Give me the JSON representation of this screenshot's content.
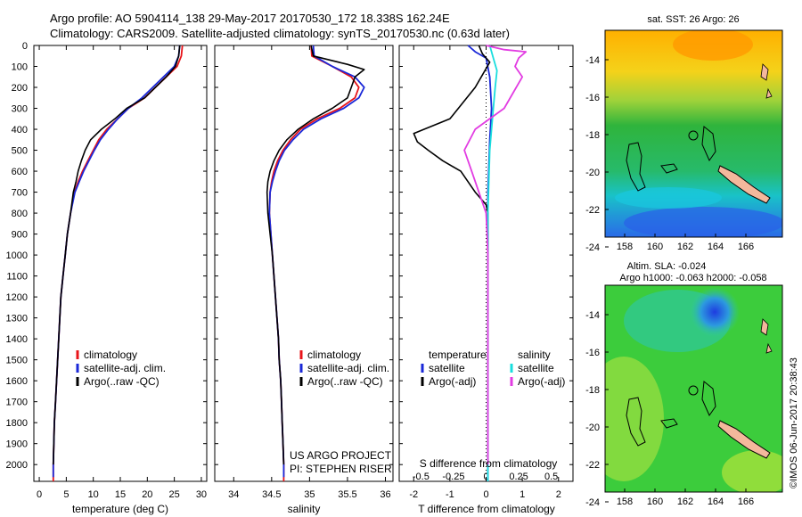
{
  "header": {
    "line1": "Argo profile: AO 5904114_138 29-May-2017 20170530_172 18.338S 162.24E",
    "line2": "Climatology: CARS2009. Satellite-adjusted climatology: synTS_20170530.nc (0.63d later)"
  },
  "colors": {
    "climatology": "#e8141a",
    "satellite": "#1a28d8",
    "argo": "#000000",
    "satellite_salinity": "#19dede",
    "argo_salinity": "#e23ce2"
  },
  "chart_data": [
    {
      "type": "line",
      "panel": "temperature",
      "xlabel": "temperature (deg C)",
      "ylabel": "",
      "xlim": [
        -1,
        31
      ],
      "ylim": [
        2080,
        0
      ],
      "xticks": [
        "0",
        "5",
        "10",
        "15",
        "20",
        "25",
        "30"
      ],
      "yticks": [
        "0",
        "100",
        "200",
        "300",
        "400",
        "500",
        "600",
        "700",
        "800",
        "900",
        "1000",
        "1100",
        "1200",
        "1300",
        "1400",
        "1500",
        "1600",
        "1700",
        "1800",
        "1900",
        "2000"
      ],
      "legend": [
        "climatology",
        "satellite-adj. clim.",
        "Argo(..raw -QC)"
      ],
      "series": [
        {
          "name": "climatology",
          "color": "#e8141a",
          "points": [
            [
              26.5,
              0
            ],
            [
              26.3,
              50
            ],
            [
              25.5,
              100
            ],
            [
              23.5,
              150
            ],
            [
              21.5,
              200
            ],
            [
              19.5,
              250
            ],
            [
              16.5,
              300
            ],
            [
              14.5,
              350
            ],
            [
              12.5,
              400
            ],
            [
              11,
              450
            ],
            [
              10,
              500
            ],
            [
              9,
              550
            ],
            [
              8,
              600
            ],
            [
              7.2,
              650
            ],
            [
              6.5,
              700
            ],
            [
              5.8,
              800
            ],
            [
              5.2,
              900
            ],
            [
              4.8,
              1000
            ],
            [
              4.4,
              1100
            ],
            [
              4,
              1200
            ],
            [
              3.8,
              1300
            ],
            [
              3.6,
              1400
            ],
            [
              3.4,
              1500
            ],
            [
              3.2,
              1600
            ],
            [
              3,
              1700
            ],
            [
              2.8,
              1800
            ],
            [
              2.7,
              1900
            ],
            [
              2.6,
              2000
            ],
            [
              2.6,
              2080
            ]
          ]
        },
        {
          "name": "satellite-adj. clim.",
          "color": "#1a28d8",
          "points": [
            [
              26,
              0
            ],
            [
              25.8,
              50
            ],
            [
              25,
              100
            ],
            [
              23,
              150
            ],
            [
              21,
              200
            ],
            [
              19,
              250
            ],
            [
              16.5,
              300
            ],
            [
              14.5,
              350
            ],
            [
              12.8,
              400
            ],
            [
              11.3,
              450
            ],
            [
              10.2,
              500
            ],
            [
              9.2,
              550
            ],
            [
              8.2,
              600
            ],
            [
              7.4,
              650
            ],
            [
              6.6,
              700
            ],
            [
              5.8,
              800
            ],
            [
              5.2,
              900
            ],
            [
              4.8,
              1000
            ],
            [
              4.4,
              1100
            ],
            [
              4,
              1200
            ],
            [
              3.8,
              1300
            ],
            [
              3.6,
              1400
            ],
            [
              3.4,
              1500
            ],
            [
              3.2,
              1600
            ],
            [
              3,
              1700
            ],
            [
              2.8,
              1800
            ],
            [
              2.7,
              1900
            ],
            [
              2.6,
              2000
            ],
            [
              2.6,
              2060
            ]
          ]
        },
        {
          "name": "Argo(..raw -QC)",
          "color": "#000000",
          "points": [
            [
              26,
              0
            ],
            [
              25.8,
              50
            ],
            [
              25.2,
              100
            ],
            [
              23.5,
              150
            ],
            [
              21.5,
              200
            ],
            [
              19.5,
              250
            ],
            [
              16.2,
              300
            ],
            [
              14,
              350
            ],
            [
              11.5,
              400
            ],
            [
              9.5,
              450
            ],
            [
              8.5,
              500
            ],
            [
              7.8,
              550
            ],
            [
              7.2,
              600
            ],
            [
              6.8,
              650
            ],
            [
              6.3,
              700
            ],
            [
              5.8,
              800
            ],
            [
              5.2,
              900
            ],
            [
              4.8,
              1000
            ],
            [
              4.4,
              1100
            ],
            [
              4,
              1200
            ],
            [
              3.8,
              1300
            ],
            [
              3.6,
              1400
            ],
            [
              3.4,
              1500
            ],
            [
              3.2,
              1600
            ],
            [
              3,
              1700
            ],
            [
              2.8,
              1800
            ],
            [
              2.7,
              1900
            ],
            [
              2.6,
              2000
            ]
          ]
        }
      ]
    },
    {
      "type": "line",
      "panel": "salinity",
      "xlabel": "salinity",
      "xlim": [
        33.75,
        36.1
      ],
      "ylim": [
        2080,
        0
      ],
      "xticks": [
        "34",
        "34.5",
        "35",
        "35.5",
        "36"
      ],
      "legend": [
        "climatology",
        "satellite-adj. clim.",
        "Argo(..raw -QC)"
      ],
      "annotations": [
        "US ARGO PROJECT",
        "PI: STEPHEN RISER"
      ],
      "series": [
        {
          "name": "climatology",
          "color": "#e8141a",
          "points": [
            [
              35.02,
              0
            ],
            [
              35.03,
              50
            ],
            [
              35.3,
              100
            ],
            [
              35.55,
              150
            ],
            [
              35.65,
              200
            ],
            [
              35.6,
              250
            ],
            [
              35.4,
              300
            ],
            [
              35.1,
              350
            ],
            [
              34.88,
              400
            ],
            [
              34.75,
              450
            ],
            [
              34.65,
              500
            ],
            [
              34.58,
              550
            ],
            [
              34.53,
              600
            ],
            [
              34.5,
              650
            ],
            [
              34.48,
              700
            ],
            [
              34.47,
              800
            ],
            [
              34.49,
              900
            ],
            [
              34.51,
              1000
            ],
            [
              34.53,
              1100
            ],
            [
              34.55,
              1200
            ],
            [
              34.57,
              1300
            ],
            [
              34.59,
              1400
            ],
            [
              34.6,
              1500
            ],
            [
              34.62,
              1600
            ],
            [
              34.63,
              1700
            ],
            [
              34.64,
              1800
            ],
            [
              34.65,
              1900
            ],
            [
              34.66,
              2000
            ],
            [
              34.66,
              2080
            ]
          ]
        },
        {
          "name": "satellite-adj. clim.",
          "color": "#1a28d8",
          "points": [
            [
              35.05,
              0
            ],
            [
              35.06,
              50
            ],
            [
              35.3,
              100
            ],
            [
              35.6,
              150
            ],
            [
              35.72,
              200
            ],
            [
              35.65,
              250
            ],
            [
              35.45,
              300
            ],
            [
              35.15,
              350
            ],
            [
              34.92,
              400
            ],
            [
              34.78,
              450
            ],
            [
              34.67,
              500
            ],
            [
              34.6,
              550
            ],
            [
              34.55,
              600
            ],
            [
              34.51,
              650
            ],
            [
              34.48,
              700
            ],
            [
              34.47,
              800
            ],
            [
              34.49,
              900
            ],
            [
              34.51,
              1000
            ],
            [
              34.53,
              1100
            ],
            [
              34.55,
              1200
            ],
            [
              34.57,
              1300
            ],
            [
              34.59,
              1400
            ],
            [
              34.6,
              1500
            ],
            [
              34.62,
              1600
            ],
            [
              34.63,
              1700
            ],
            [
              34.64,
              1800
            ],
            [
              34.65,
              1900
            ],
            [
              34.66,
              2000
            ],
            [
              34.66,
              2060
            ]
          ]
        },
        {
          "name": "Argo(..raw -QC)",
          "color": "#000000",
          "points": [
            [
              35.02,
              0
            ],
            [
              35.05,
              50
            ],
            [
              35.5,
              90
            ],
            [
              35.72,
              115
            ],
            [
              35.6,
              150
            ],
            [
              35.55,
              200
            ],
            [
              35.5,
              250
            ],
            [
              35.3,
              300
            ],
            [
              35.05,
              350
            ],
            [
              34.85,
              400
            ],
            [
              34.7,
              450
            ],
            [
              34.6,
              500
            ],
            [
              34.53,
              550
            ],
            [
              34.48,
              600
            ],
            [
              34.45,
              650
            ],
            [
              34.44,
              700
            ],
            [
              34.45,
              800
            ],
            [
              34.48,
              900
            ],
            [
              34.51,
              1000
            ],
            [
              34.53,
              1100
            ],
            [
              34.55,
              1200
            ],
            [
              34.57,
              1300
            ],
            [
              34.59,
              1400
            ],
            [
              34.6,
              1500
            ],
            [
              34.62,
              1600
            ],
            [
              34.63,
              1700
            ],
            [
              34.64,
              1800
            ],
            [
              34.65,
              1900
            ],
            [
              34.66,
              2000
            ]
          ]
        }
      ]
    },
    {
      "type": "line",
      "panel": "differences",
      "xlabel": "T difference from climatology",
      "xlabel_top": "S difference from climatology",
      "xlim": [
        -2.4,
        2.4
      ],
      "ylim": [
        2080,
        0
      ],
      "xticks": [
        "-2",
        "-1",
        "0",
        "1",
        "2"
      ],
      "xticks_S": [
        "-0.5",
        "-0.25",
        "0",
        "0.25",
        "0.5"
      ],
      "xticks_S_values": [
        -0.5,
        -0.25,
        0,
        0.25,
        0.5
      ],
      "legend_temperature_title": "temperature",
      "legend_salinity_title": "salinity",
      "legend_temperature": [
        "satellite",
        "Argo(-adj)"
      ],
      "legend_salinity": [
        "satellite",
        "Argo(-adj)"
      ],
      "series": [
        {
          "name": "temperature satellite",
          "color": "#1a28d8",
          "points": [
            [
              -0.5,
              0
            ],
            [
              -0.3,
              30
            ],
            [
              0,
              60
            ],
            [
              0.1,
              150
            ],
            [
              0.15,
              300
            ],
            [
              0.1,
              450
            ],
            [
              0.05,
              700
            ],
            [
              0.05,
              1000
            ],
            [
              0.05,
              1500
            ],
            [
              0.05,
              2000
            ],
            [
              0.05,
              2080
            ]
          ]
        },
        {
          "name": "temperature Argo(-adj)",
          "color": "#000000",
          "points": [
            [
              -0.2,
              0
            ],
            [
              -0.1,
              40
            ],
            [
              0.1,
              80
            ],
            [
              -0.3,
              200
            ],
            [
              -1,
              350
            ],
            [
              -2,
              420
            ],
            [
              -1.9,
              460
            ],
            [
              -1.6,
              500
            ],
            [
              -1.2,
              550
            ],
            [
              -0.7,
              600
            ],
            [
              -0.3,
              700
            ],
            [
              0,
              760
            ],
            [
              0.05,
              800
            ],
            [
              0.05,
              1000
            ],
            [
              0.05,
              1200
            ],
            [
              0.05,
              1500
            ],
            [
              0.05,
              2000
            ]
          ]
        },
        {
          "name": "salinity satellite",
          "color": "#19dede",
          "points": [
            [
              0.1,
              0
            ],
            [
              0.2,
              60
            ],
            [
              0.3,
              120
            ],
            [
              0.25,
              200
            ],
            [
              0.2,
              300
            ],
            [
              0.1,
              500
            ],
            [
              0.05,
              800
            ],
            [
              0.05,
              1500
            ],
            [
              0.05,
              2080
            ]
          ]
        },
        {
          "name": "salinity Argo(-adj)",
          "color": "#e23ce2",
          "points": [
            [
              0,
              0
            ],
            [
              0.5,
              20
            ],
            [
              1.1,
              30
            ],
            [
              0.9,
              60
            ],
            [
              0.8,
              100
            ],
            [
              1,
              150
            ],
            [
              0.5,
              300
            ],
            [
              -0.3,
              400
            ],
            [
              -0.6,
              500
            ],
            [
              -0.4,
              600
            ],
            [
              -0.2,
              700
            ],
            [
              0,
              800
            ],
            [
              0.03,
              900
            ],
            [
              0.05,
              1000
            ],
            [
              0.05,
              1500
            ],
            [
              0.05,
              2000
            ]
          ]
        }
      ]
    }
  ],
  "map_sst": {
    "title": "sat. SST: 26 Argo: 26",
    "xticks": [
      "158",
      "160",
      "162",
      "164",
      "166"
    ],
    "yticks": [
      "-14",
      "-16",
      "-18",
      "-20",
      "-22",
      "-24"
    ]
  },
  "map_sla": {
    "title_line1": "Altim. SLA: -0.024",
    "title_line2": "Argo h1000: -0.063 h2000: -0.058",
    "xticks": [
      "158",
      "160",
      "162",
      "164",
      "166"
    ],
    "yticks": [
      "-14",
      "-16",
      "-18",
      "-20",
      "-22",
      "-24"
    ]
  },
  "credit": "©IMOS 06-Jun-2017 20:38:43"
}
